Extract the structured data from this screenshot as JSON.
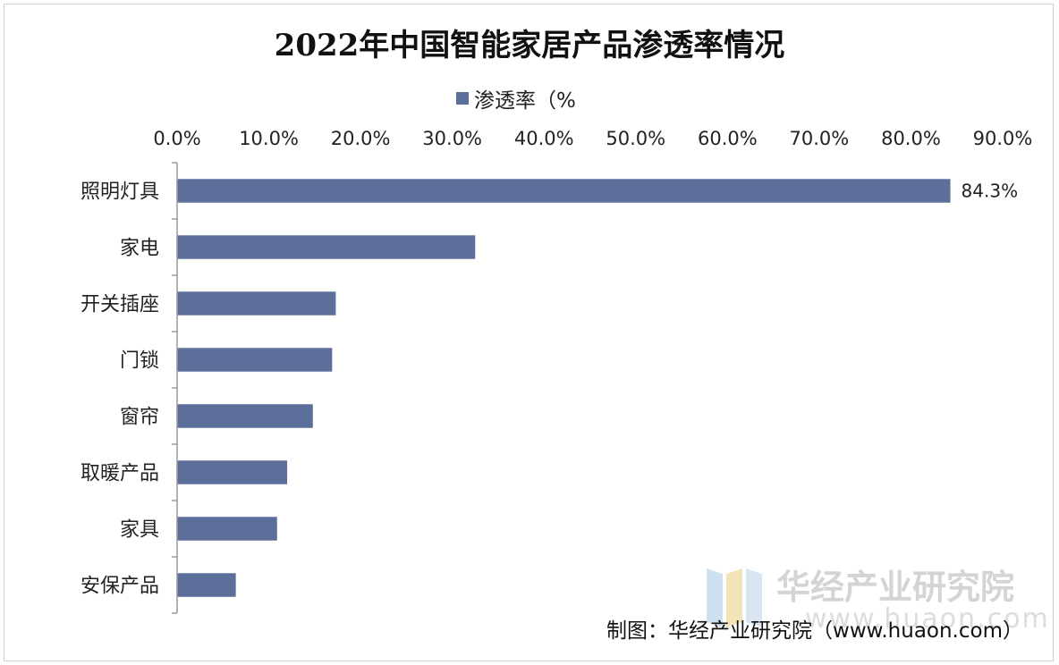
{
  "chart_data": {
    "type": "bar",
    "orientation": "horizontal",
    "title": "2022年中国智能家居产品渗透率情况",
    "legend": {
      "entries": [
        "渗透率（%"
      ],
      "position": "top"
    },
    "series": [
      {
        "name": "渗透率（%",
        "color": "#5b6f9a",
        "values": [
          84.3,
          32.5,
          17.3,
          16.9,
          14.8,
          12.0,
          10.9,
          6.4
        ]
      }
    ],
    "categories": [
      "照明灯具",
      "家电",
      "开关插座",
      "门锁",
      "窗帘",
      "取暖产品",
      "家具",
      "安保产品"
    ],
    "data_labels": [
      {
        "category": "照明灯具",
        "text": "84.3%"
      }
    ],
    "xlim": [
      0,
      90
    ],
    "x_ticks": [
      "0.0%",
      "10.0%",
      "20.0%",
      "30.0%",
      "40.0%",
      "50.0%",
      "60.0%",
      "70.0%",
      "80.0%",
      "90.0%"
    ],
    "x_axis_position": "top",
    "grid": false
  },
  "watermark": {
    "brand": "华经产业研究院",
    "url": "www.huaon.com"
  },
  "source": "制图：华经产业研究院（www.huaon.com）"
}
